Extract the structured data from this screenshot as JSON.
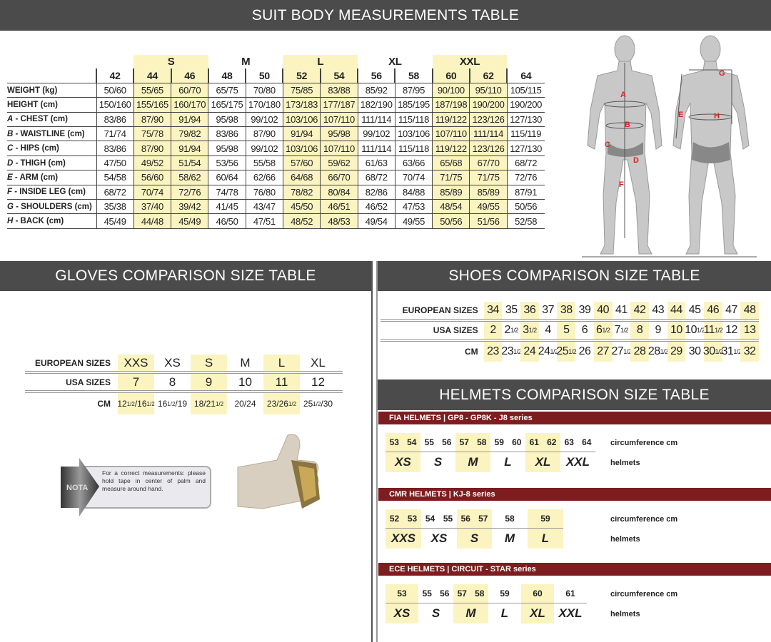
{
  "suit": {
    "title": "SUIT BODY MEASUREMENTS TABLE",
    "groups": [
      {
        "label": "",
        "span": 1,
        "hl": false
      },
      {
        "label": "S",
        "span": 2,
        "hl": true
      },
      {
        "label": "M",
        "span": 2,
        "hl": false
      },
      {
        "label": "L",
        "span": 2,
        "hl": true
      },
      {
        "label": "XL",
        "span": 2,
        "hl": false
      },
      {
        "label": "XXL",
        "span": 2,
        "hl": true
      },
      {
        "label": "",
        "span": 1,
        "hl": false
      }
    ],
    "sizes": [
      "42",
      "44",
      "46",
      "48",
      "50",
      "52",
      "54",
      "56",
      "58",
      "60",
      "62",
      "64"
    ],
    "highlight_cols": [
      1,
      2,
      5,
      6,
      9,
      10
    ],
    "rows": [
      {
        "letter": "",
        "label": "WEIGHT (kg)",
        "values": [
          "50/60",
          "55/65",
          "60/70",
          "65/75",
          "70/80",
          "75/85",
          "83/88",
          "85/92",
          "87/95",
          "90/100",
          "95/110",
          "105/115"
        ]
      },
      {
        "letter": "",
        "label": "HEIGHT (cm)",
        "values": [
          "150/160",
          "155/165",
          "160/170",
          "165/175",
          "170/180",
          "173/183",
          "177/187",
          "182/190",
          "185/195",
          "187/198",
          "190/200",
          "190/200"
        ]
      },
      {
        "letter": "A",
        "label": " - CHEST (cm)",
        "values": [
          "83/86",
          "87/90",
          "91/94",
          "95/98",
          "99/102",
          "103/106",
          "107/110",
          "111/114",
          "115/118",
          "119/122",
          "123/126",
          "127/130"
        ]
      },
      {
        "letter": "B",
        "label": " - WAISTLINE (cm)",
        "values": [
          "71/74",
          "75/78",
          "79/82",
          "83/86",
          "87/90",
          "91/94",
          "95/98",
          "99/102",
          "103/106",
          "107/110",
          "111/114",
          "115/119"
        ]
      },
      {
        "letter": "C",
        "label": " - HIPS (cm)",
        "values": [
          "83/86",
          "87/90",
          "91/94",
          "95/98",
          "99/102",
          "103/106",
          "107/110",
          "111/114",
          "115/118",
          "119/122",
          "123/126",
          "127/130"
        ]
      },
      {
        "letter": "D",
        "label": " - THIGH (cm)",
        "values": [
          "47/50",
          "49/52",
          "51/54",
          "53/56",
          "55/58",
          "57/60",
          "59/62",
          "61/63",
          "63/66",
          "65/68",
          "67/70",
          "68/72"
        ]
      },
      {
        "letter": "E",
        "label": " - ARM (cm)",
        "values": [
          "54/58",
          "56/60",
          "58/62",
          "60/64",
          "62/66",
          "64/68",
          "66/70",
          "68/72",
          "70/74",
          "71/75",
          "71/75",
          "72/76"
        ]
      },
      {
        "letter": "F",
        "label": " - INSIDE LEG (cm)",
        "values": [
          "68/72",
          "70/74",
          "72/76",
          "74/78",
          "76/80",
          "78/82",
          "80/84",
          "82/86",
          "84/88",
          "85/89",
          "85/89",
          "87/91"
        ]
      },
      {
        "letter": "G",
        "label": " - SHOULDERS (cm)",
        "values": [
          "35/38",
          "37/40",
          "39/42",
          "41/45",
          "43/47",
          "45/50",
          "46/51",
          "46/52",
          "47/53",
          "48/54",
          "49/55",
          "50/56"
        ]
      },
      {
        "letter": "H",
        "label": " - BACK (cm)",
        "values": [
          "45/49",
          "44/48",
          "45/49",
          "46/50",
          "47/51",
          "48/52",
          "48/53",
          "49/54",
          "49/55",
          "50/56",
          "51/56",
          "52/58"
        ]
      }
    ],
    "figure_letters": [
      "A",
      "B",
      "C",
      "D",
      "E",
      "F",
      "G",
      "H"
    ]
  },
  "gloves": {
    "title": "GLOVES COMPARISON SIZE TABLE",
    "row_labels": [
      "EUROPEAN SIZES",
      "USA SIZES",
      "CM"
    ],
    "european": [
      "XXS",
      "XS",
      "S",
      "M",
      "L",
      "XL"
    ],
    "usa": [
      "7",
      "8",
      "9",
      "10",
      "11",
      "12"
    ],
    "cm": [
      [
        {
          "t": "12"
        },
        {
          "s": "1/2"
        },
        {
          "t": "/16"
        },
        {
          "s": "1/2"
        }
      ],
      [
        {
          "t": "16"
        },
        {
          "s": "1/2"
        },
        {
          "t": "/19"
        }
      ],
      [
        {
          "t": "18/21"
        },
        {
          "s": "1/2"
        }
      ],
      [
        {
          "t": "20/24"
        }
      ],
      [
        {
          "t": "23/26"
        },
        {
          "s": "1/2"
        }
      ],
      [
        {
          "t": "25"
        },
        {
          "s": "1/2"
        },
        {
          "t": "/30"
        }
      ]
    ],
    "highlight_cols": [
      0,
      2,
      4
    ],
    "nota": {
      "badge": "NOTA",
      "text": "For a correct measurements: please hold tape in center of palm and measure around hand."
    }
  },
  "shoes": {
    "title": "SHOES COMPARISON SIZE TABLE",
    "row_labels": [
      "EUROPEAN SIZES",
      "USA SIZES",
      "CM"
    ],
    "european": [
      [
        "34"
      ],
      [
        "35"
      ],
      [
        "36"
      ],
      [
        "37"
      ],
      [
        "38"
      ],
      [
        "39"
      ],
      [
        "40"
      ],
      [
        "41"
      ],
      [
        "42"
      ],
      [
        "43"
      ],
      [
        "44"
      ],
      [
        "45"
      ],
      [
        "46"
      ],
      [
        "47"
      ],
      [
        "48"
      ]
    ],
    "usa": [
      [
        "2"
      ],
      [
        "2",
        "1/2"
      ],
      [
        "3",
        "1/2"
      ],
      [
        "4"
      ],
      [
        "5"
      ],
      [
        "6"
      ],
      [
        "6",
        "1/2"
      ],
      [
        "7",
        "1/2"
      ],
      [
        "8"
      ],
      [
        "9"
      ],
      [
        "10"
      ],
      [
        "10",
        "1/2"
      ],
      [
        "11",
        "1/2"
      ],
      [
        "12"
      ],
      [
        "13"
      ]
    ],
    "cm": [
      [
        "23"
      ],
      [
        "23",
        "1/2"
      ],
      [
        "24"
      ],
      [
        "24",
        "1/2"
      ],
      [
        "25",
        "1/2"
      ],
      [
        "26"
      ],
      [
        "27"
      ],
      [
        "27",
        "1/2"
      ],
      [
        "28"
      ],
      [
        "28",
        "1/2"
      ],
      [
        "29"
      ],
      [
        "30"
      ],
      [
        "30",
        "1/2"
      ],
      [
        "31",
        "1/2"
      ],
      [
        "32"
      ]
    ],
    "highlight_cols": [
      0,
      2,
      4,
      6,
      8,
      10,
      12,
      14
    ]
  },
  "helmets": {
    "title": "HELMETS COMPARISON SIZE TABLE",
    "circ_label": "circumference cm",
    "size_label": "helmets",
    "series": [
      {
        "title": "FIA HELMETS | GP8 - GP8K - J8 series",
        "groups": [
          {
            "size": "XS",
            "circ": [
              "53",
              "54"
            ],
            "hl": true
          },
          {
            "size": "S",
            "circ": [
              "55",
              "56"
            ],
            "hl": false
          },
          {
            "size": "M",
            "circ": [
              "57",
              "58"
            ],
            "hl": true
          },
          {
            "size": "L",
            "circ": [
              "59",
              "60"
            ],
            "hl": false
          },
          {
            "size": "XL",
            "circ": [
              "61",
              "62"
            ],
            "hl": true
          },
          {
            "size": "XXL",
            "circ": [
              "63",
              "64"
            ],
            "hl": false
          }
        ]
      },
      {
        "title": "CMR HELMETS | KJ-8 series",
        "groups": [
          {
            "size": "XXS",
            "circ": [
              "52",
              "53"
            ],
            "hl": true
          },
          {
            "size": "XS",
            "circ": [
              "54",
              "55"
            ],
            "hl": false
          },
          {
            "size": "S",
            "circ": [
              "56",
              "57"
            ],
            "hl": true
          },
          {
            "size": "M",
            "circ": [
              "58"
            ],
            "hl": false
          },
          {
            "size": "L",
            "circ": [
              "59"
            ],
            "hl": true
          }
        ]
      },
      {
        "title": "ECE HELMETS | CIRCUIT - STAR series",
        "groups": [
          {
            "size": "XS",
            "circ": [
              "53"
            ],
            "hl": true
          },
          {
            "size": "S",
            "circ": [
              "55",
              "56"
            ],
            "hl": false
          },
          {
            "size": "M",
            "circ": [
              "57",
              "58"
            ],
            "hl": true
          },
          {
            "size": "L",
            "circ": [
              "59"
            ],
            "hl": false
          },
          {
            "size": "XL",
            "circ": [
              "60"
            ],
            "hl": true
          },
          {
            "size": "XXL",
            "circ": [
              "61"
            ],
            "hl": false
          }
        ]
      }
    ]
  },
  "colors": {
    "header_bg": "#4b4b4b",
    "highlight": "#fbf4c0",
    "helmet_bar": "#7d1d1f",
    "figure_letters": "#e02020"
  }
}
